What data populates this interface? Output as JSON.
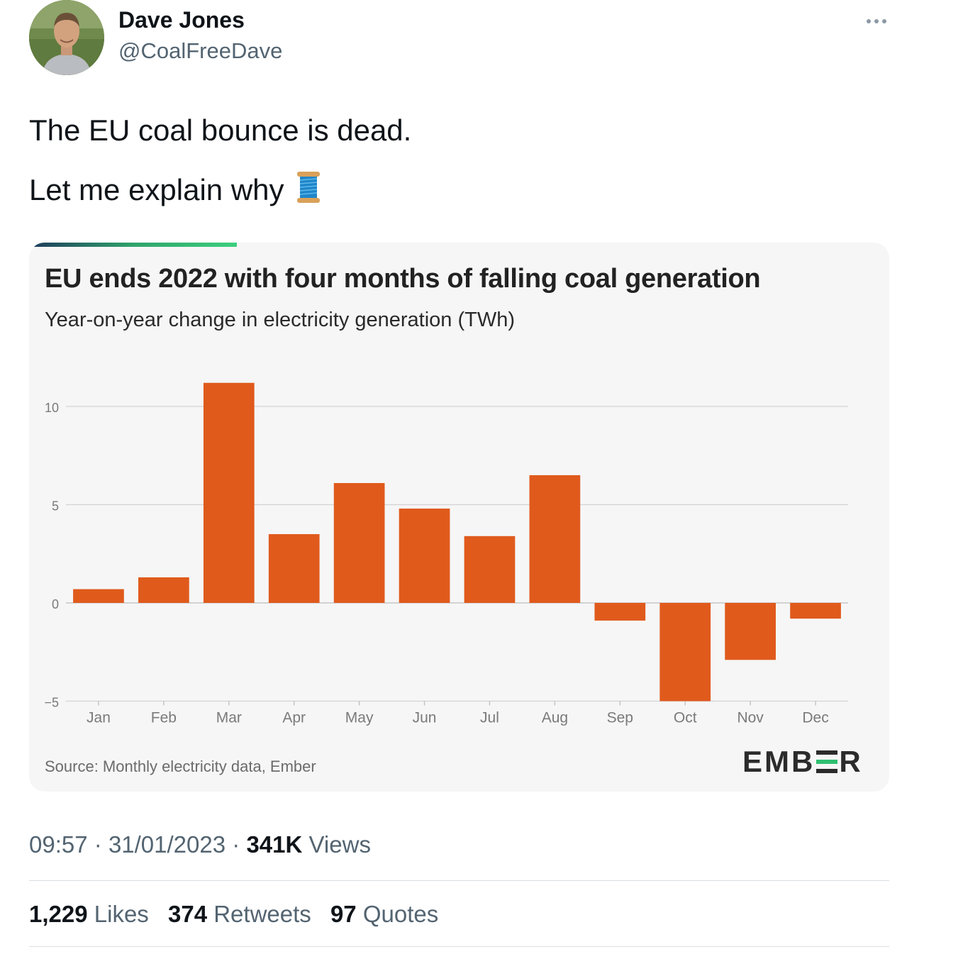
{
  "author": {
    "name": "Dave Jones",
    "handle": "@CoalFreeDave"
  },
  "tweet": {
    "lines": [
      "The EU coal bounce is dead.",
      "Let me explain why"
    ],
    "emoji_icon": "spool-of-thread-icon"
  },
  "card": {
    "title": "EU ends 2022 with four months of falling coal generation",
    "subtitle": "Year-on-year change in electricity generation (TWh)",
    "source": "Source: Monthly electricity data, Ember",
    "logo_parts": [
      "EMB",
      "R"
    ],
    "accent_colors": [
      "#1e3a5c",
      "#3ccf7e"
    ]
  },
  "chart_data": {
    "type": "bar",
    "categories": [
      "Jan",
      "Feb",
      "Mar",
      "Apr",
      "May",
      "Jun",
      "Jul",
      "Aug",
      "Sep",
      "Oct",
      "Nov",
      "Dec"
    ],
    "values": [
      0.7,
      1.3,
      11.2,
      3.5,
      6.1,
      4.8,
      3.4,
      6.5,
      -0.9,
      -5.0,
      -2.9,
      -0.8
    ],
    "yticks": [
      10,
      5,
      0,
      -5
    ],
    "ytick_labels": [
      "10",
      "5",
      "0",
      "−5"
    ],
    "ylim": [
      -5,
      12
    ],
    "bar_color": "#e05a1c",
    "grid": true
  },
  "meta": {
    "time": "09:57",
    "sep": "·",
    "date": "31/01/2023",
    "views_count": "341K",
    "views_label": "Views"
  },
  "stats": [
    {
      "count": "1,229",
      "label": "Likes"
    },
    {
      "count": "374",
      "label": "Retweets"
    },
    {
      "count": "97",
      "label": "Quotes"
    }
  ]
}
